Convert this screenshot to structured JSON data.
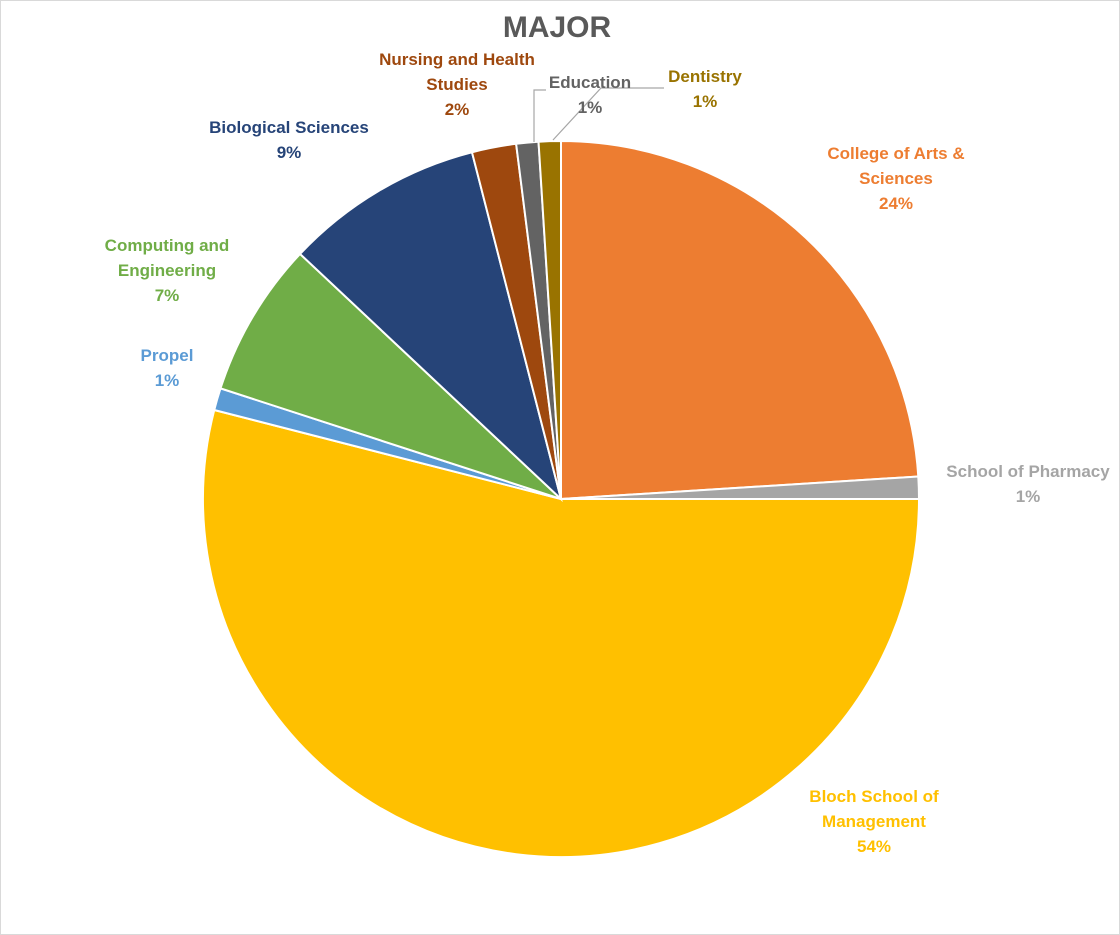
{
  "chart_data": {
    "type": "pie",
    "title": "MAJOR",
    "unit": "%",
    "start_angle_deg": 0,
    "direction": "clockwise",
    "slices": [
      {
        "name": "College of Arts & Sciences",
        "value": 24,
        "label_lines": [
          "College of Arts &",
          "Sciences",
          "24%"
        ],
        "color": "#ED7D31"
      },
      {
        "name": "School of Pharmacy",
        "value": 1,
        "label_lines": [
          "School of Pharmacy",
          "1%"
        ],
        "color": "#A5A5A5"
      },
      {
        "name": "Bloch School of Management",
        "value": 54,
        "label_lines": [
          "Bloch School of",
          "Management",
          "54%"
        ],
        "color": "#FFC000"
      },
      {
        "name": "Propel",
        "value": 1,
        "label_lines": [
          "Propel",
          "1%"
        ],
        "color": "#5B9BD5"
      },
      {
        "name": "Computing and Engineering",
        "value": 7,
        "label_lines": [
          "Computing and",
          "Engineering",
          "7%"
        ],
        "color": "#70AD47"
      },
      {
        "name": "Biological Sciences",
        "value": 9,
        "label_lines": [
          "Biological Sciences",
          "9%"
        ],
        "color": "#264478"
      },
      {
        "name": "Nursing and Health Studies",
        "value": 2,
        "label_lines": [
          "Nursing and Health",
          "Studies",
          "2%"
        ],
        "color": "#9E480E"
      },
      {
        "name": "Education",
        "value": 1,
        "label_lines": [
          "Education",
          "1%"
        ],
        "color": "#636363"
      },
      {
        "name": "Dentistry",
        "value": 1,
        "label_lines": [
          "Dentistry",
          "1%"
        ],
        "color": "#997300"
      }
    ]
  }
}
